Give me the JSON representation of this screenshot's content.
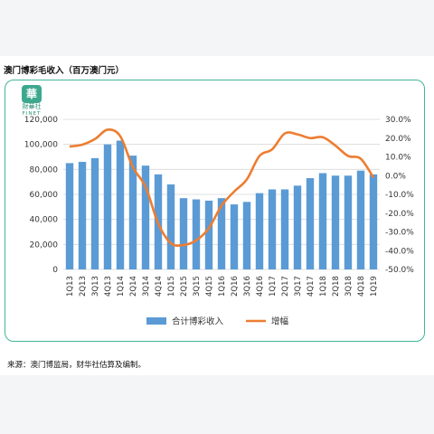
{
  "title": "澳门博彩毛收入（百万澳门元）",
  "brand": {
    "cn": "財華社",
    "en": "FINET",
    "glyph": "華"
  },
  "source": "来源：澳门博监局，财华社估算及编制。",
  "colors": {
    "bar": "#5b9bd5",
    "line": "#ed7d31",
    "frame": "#43b59a",
    "grid": "#d9d9d9"
  },
  "chart_data": {
    "type": "bar",
    "categories": [
      "1Q13",
      "2Q13",
      "3Q13",
      "4Q13",
      "1Q14",
      "2Q14",
      "3Q14",
      "4Q14",
      "1Q15",
      "2Q15",
      "3Q15",
      "4Q15",
      "1Q16",
      "2Q16",
      "3Q16",
      "4Q16",
      "1Q17",
      "2Q17",
      "3Q17",
      "4Q17",
      "1Q18",
      "2Q18",
      "3Q18",
      "4Q18",
      "1Q19"
    ],
    "series": [
      {
        "name": "合计博彩收入",
        "type": "bar",
        "axis": "left",
        "values": [
          85000,
          86000,
          89000,
          100000,
          103000,
          91000,
          83000,
          76000,
          68000,
          57000,
          56000,
          55000,
          57000,
          52000,
          54000,
          61000,
          64000,
          64000,
          67000,
          73000,
          77000,
          75000,
          75000,
          79000,
          76000
        ]
      },
      {
        "name": "增幅",
        "type": "line",
        "axis": "right",
        "values": [
          15.5,
          16.5,
          19.5,
          24.5,
          21,
          4.5,
          -6,
          -25.5,
          -36,
          -37,
          -34.5,
          -28,
          -16,
          -8.5,
          -2,
          10.5,
          14,
          22.5,
          22,
          20,
          20.5,
          16,
          10.5,
          9,
          -1
        ]
      }
    ],
    "y_left": {
      "ticks": [
        "0",
        "20,000",
        "40,000",
        "60,000",
        "80,000",
        "100,000",
        "120,000"
      ],
      "min": 0,
      "max": 120000
    },
    "y_right": {
      "ticks": [
        "30.0%",
        "20.0%",
        "10.0%",
        "0.0%",
        "-10.0%",
        "-20.0%",
        "-30.0%",
        "-40.0%",
        "-50.0%"
      ],
      "min": -50,
      "max": 30
    },
    "grid": true,
    "legend_position": "bottom"
  }
}
